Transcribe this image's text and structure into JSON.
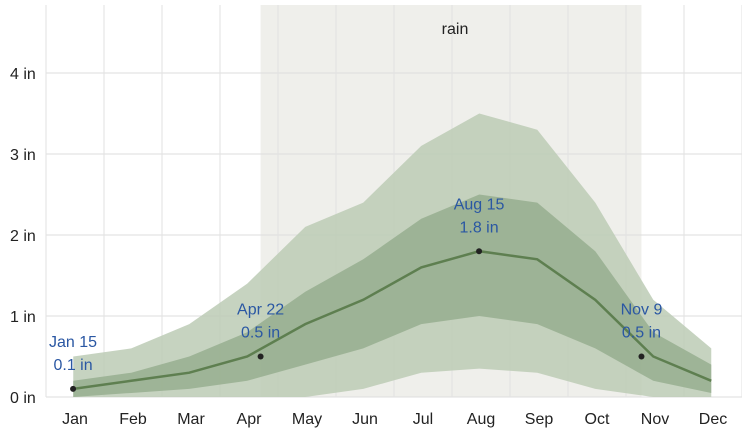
{
  "chart_data": {
    "type": "band-line",
    "title": "rain",
    "categories": [
      "Jan",
      "Feb",
      "Mar",
      "Apr",
      "May",
      "Jun",
      "Jul",
      "Aug",
      "Sep",
      "Oct",
      "Nov",
      "Dec"
    ],
    "bands": [
      {
        "color": "#bccbb5",
        "low": [
          0,
          0,
          0,
          0,
          0,
          0.1,
          0.3,
          0.35,
          0.3,
          0.1,
          0,
          0
        ],
        "high": [
          0.5,
          0.6,
          0.9,
          1.4,
          2.1,
          2.4,
          3.1,
          3.5,
          3.3,
          2.4,
          1.2,
          0.6
        ]
      },
      {
        "color": "#97ae8f",
        "low": [
          0,
          0.05,
          0.1,
          0.2,
          0.4,
          0.6,
          0.9,
          1.0,
          0.9,
          0.6,
          0.2,
          0.05
        ],
        "high": [
          0.2,
          0.3,
          0.5,
          0.8,
          1.3,
          1.7,
          2.2,
          2.5,
          2.4,
          1.8,
          0.8,
          0.4
        ]
      }
    ],
    "series": [
      {
        "color": "#5e7f50",
        "values": [
          0.1,
          0.2,
          0.3,
          0.5,
          0.9,
          1.2,
          1.6,
          1.8,
          1.7,
          1.2,
          0.5,
          0.2
        ]
      }
    ],
    "annotations": [
      {
        "date": "Jan 15",
        "value": 0.1,
        "value_label": "0.1 in"
      },
      {
        "date": "Apr 22",
        "value": 0.5,
        "value_label": "0.5 in"
      },
      {
        "date": "Aug 15",
        "value": 1.8,
        "value_label": "1.8 in"
      },
      {
        "date": "Nov 9",
        "value": 0.5,
        "value_label": "0.5 in"
      }
    ],
    "ylim": [
      0,
      4
    ],
    "yticks": [
      {
        "value": 0,
        "label": "0 in"
      },
      {
        "value": 1,
        "label": "1 in"
      },
      {
        "value": 2,
        "label": "2 in"
      },
      {
        "value": 3,
        "label": "3 in"
      },
      {
        "value": 4,
        "label": "4 in"
      }
    ],
    "grid": true
  }
}
